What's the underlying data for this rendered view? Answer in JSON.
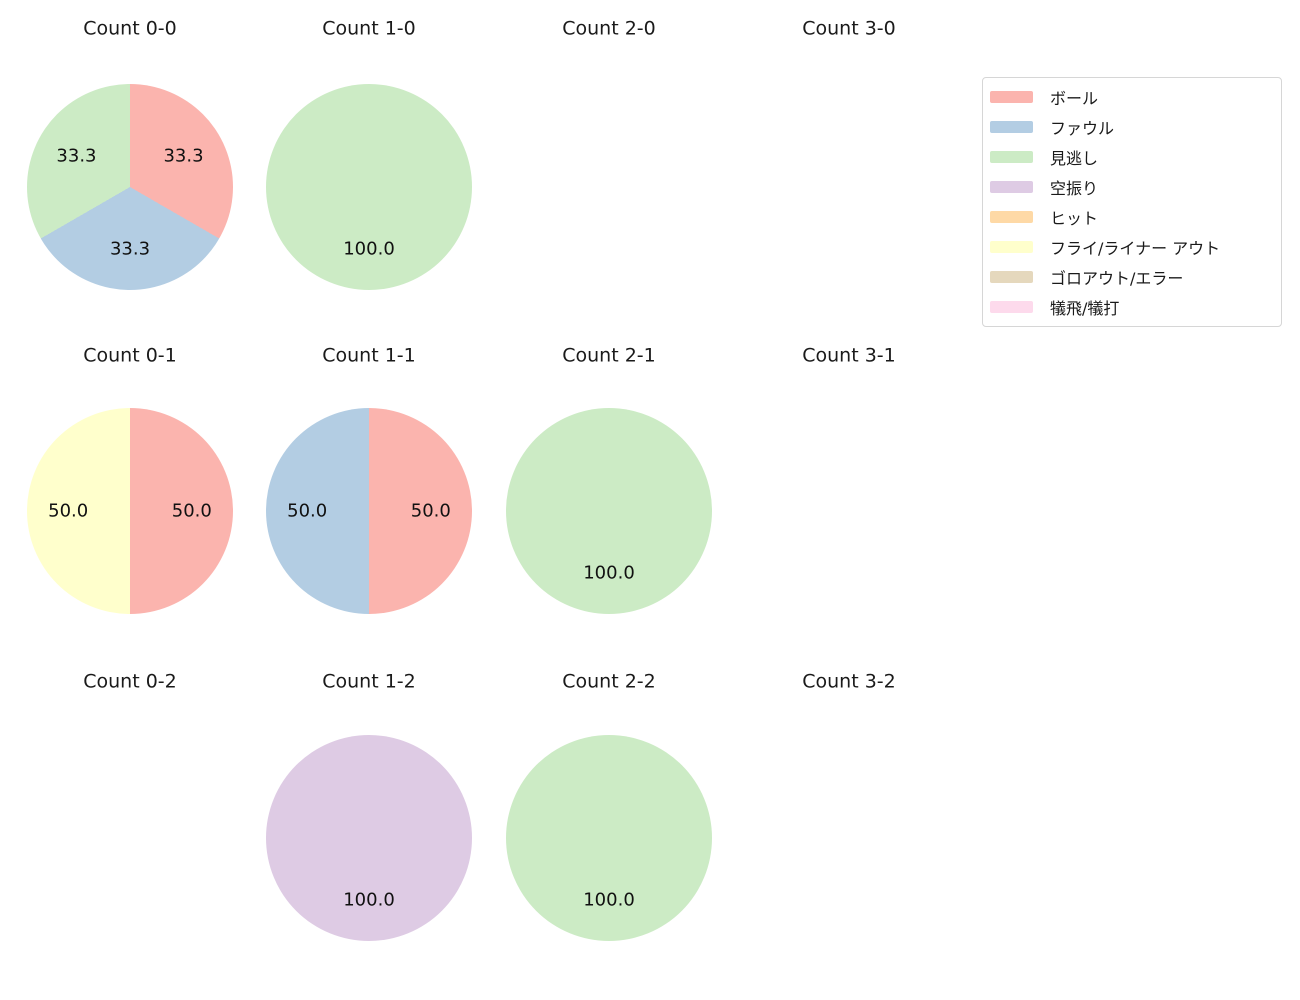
{
  "figure": {
    "background": "#ffffff",
    "text_color": "#1a1a1a"
  },
  "legend": {
    "position": "top-right",
    "border_color": "#d6d6d6",
    "items": [
      {
        "label": "ボール",
        "color": "#fbb4ae"
      },
      {
        "label": "ファウル",
        "color": "#b3cde3"
      },
      {
        "label": "見逃し",
        "color": "#ccebc5"
      },
      {
        "label": "空振り",
        "color": "#decbe4"
      },
      {
        "label": "ヒット",
        "color": "#fed9a6"
      },
      {
        "label": "フライ/ライナー アウト",
        "color": "#ffffcc"
      },
      {
        "label": "ゴロアウト/エラー",
        "color": "#e5d8bd"
      },
      {
        "label": "犠飛/犠打",
        "color": "#fddaec"
      }
    ]
  },
  "chart_data": [
    {
      "type": "pie",
      "title": "Count 0-0",
      "grid": {
        "col": 0,
        "row": 0
      },
      "slices": [
        {
          "label": "ボール",
          "value": 33.3,
          "display": "33.3",
          "color": "#fbb4ae"
        },
        {
          "label": "ファウル",
          "value": 33.3,
          "display": "33.3",
          "color": "#b3cde3"
        },
        {
          "label": "見逃し",
          "value": 33.3,
          "display": "33.3",
          "color": "#ccebc5"
        }
      ]
    },
    {
      "type": "pie",
      "title": "Count 1-0",
      "grid": {
        "col": 1,
        "row": 0
      },
      "slices": [
        {
          "label": "見逃し",
          "value": 100.0,
          "display": "100.0",
          "color": "#ccebc5"
        }
      ]
    },
    {
      "type": "pie",
      "title": "Count 2-0",
      "grid": {
        "col": 2,
        "row": 0
      },
      "slices": []
    },
    {
      "type": "pie",
      "title": "Count 3-0",
      "grid": {
        "col": 3,
        "row": 0
      },
      "slices": []
    },
    {
      "type": "pie",
      "title": "Count 0-1",
      "grid": {
        "col": 0,
        "row": 1
      },
      "slices": [
        {
          "label": "ボール",
          "value": 50.0,
          "display": "50.0",
          "color": "#fbb4ae"
        },
        {
          "label": "フライ/ライナー アウト",
          "value": 50.0,
          "display": "50.0",
          "color": "#ffffcc"
        }
      ]
    },
    {
      "type": "pie",
      "title": "Count 1-1",
      "grid": {
        "col": 1,
        "row": 1
      },
      "slices": [
        {
          "label": "ボール",
          "value": 50.0,
          "display": "50.0",
          "color": "#fbb4ae"
        },
        {
          "label": "ファウル",
          "value": 50.0,
          "display": "50.0",
          "color": "#b3cde3"
        }
      ]
    },
    {
      "type": "pie",
      "title": "Count 2-1",
      "grid": {
        "col": 2,
        "row": 1
      },
      "slices": [
        {
          "label": "見逃し",
          "value": 100.0,
          "display": "100.0",
          "color": "#ccebc5"
        }
      ]
    },
    {
      "type": "pie",
      "title": "Count 3-1",
      "grid": {
        "col": 3,
        "row": 1
      },
      "slices": []
    },
    {
      "type": "pie",
      "title": "Count 0-2",
      "grid": {
        "col": 0,
        "row": 2
      },
      "slices": []
    },
    {
      "type": "pie",
      "title": "Count 1-2",
      "grid": {
        "col": 1,
        "row": 2
      },
      "slices": [
        {
          "label": "空振り",
          "value": 100.0,
          "display": "100.0",
          "color": "#decbe4"
        }
      ]
    },
    {
      "type": "pie",
      "title": "Count 2-2",
      "grid": {
        "col": 2,
        "row": 2
      },
      "slices": [
        {
          "label": "見逃し",
          "value": 100.0,
          "display": "100.0",
          "color": "#ccebc5"
        }
      ]
    },
    {
      "type": "pie",
      "title": "Count 3-2",
      "grid": {
        "col": 3,
        "row": 2
      },
      "slices": []
    }
  ]
}
